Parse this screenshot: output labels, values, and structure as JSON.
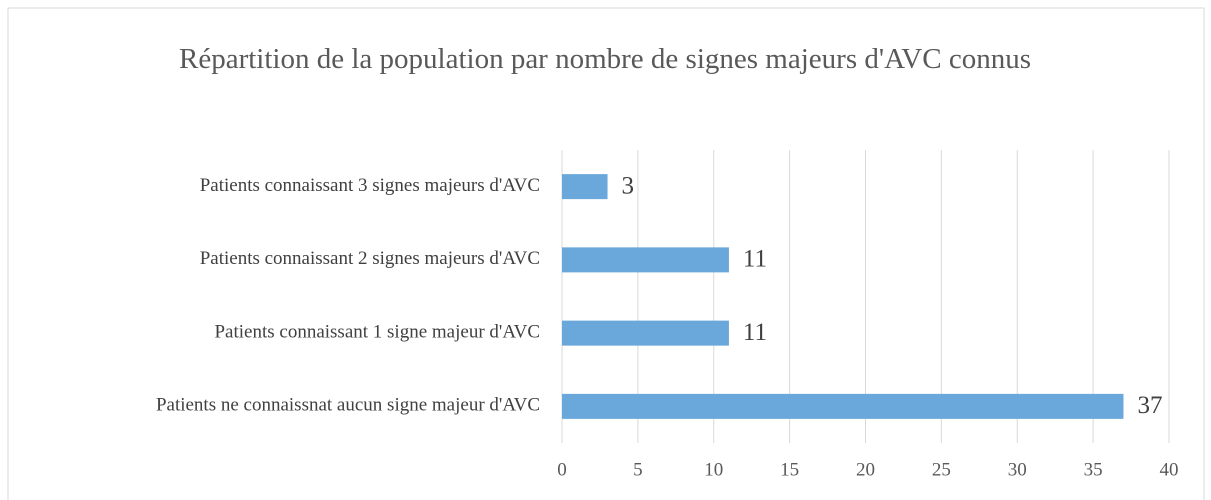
{
  "chart_data": {
    "type": "bar",
    "orientation": "horizontal",
    "title": "Répartition de la population par nombre de signes majeurs d'AVC connus",
    "categories": [
      "Patients ne connaissnat aucun signe majeur d'AVC",
      "Patients connaissant 1 signe majeur d'AVC",
      "Patients connaissant 2 signes majeurs d'AVC",
      "Patients connaissant 3 signes majeurs d'AVC"
    ],
    "values": [
      37,
      11,
      11,
      3
    ],
    "color": "#6aa7da",
    "xlim": [
      0,
      40
    ],
    "xticks": [
      0,
      5,
      10,
      15,
      20,
      25,
      30,
      35,
      40
    ],
    "grid": true
  }
}
